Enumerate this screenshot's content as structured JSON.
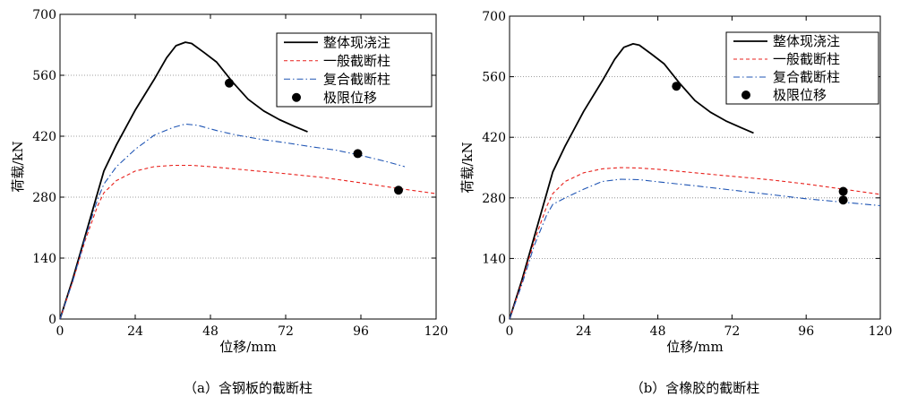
{
  "chart_data": [
    {
      "type": "line",
      "caption": "（a）含钢板的截断柱",
      "xlabel": "位移/mm",
      "ylabel": "荷载/kN",
      "xlim": [
        0,
        120
      ],
      "ylim": [
        0,
        700
      ],
      "xticks": [
        0,
        24,
        48,
        72,
        96,
        120
      ],
      "yticks": [
        0,
        140,
        280,
        420,
        560,
        700
      ],
      "grid": "horizontal dotted",
      "legend_position": "top-right",
      "legend": [
        "整体现浇注",
        "一般截断柱",
        "复合截断柱",
        "极限位移"
      ],
      "series": [
        {
          "name": "整体现浇注",
          "color": "#000000",
          "style": "solid",
          "points": [
            [
              0,
              0
            ],
            [
              4,
              90
            ],
            [
              8,
              190
            ],
            [
              12,
              290
            ],
            [
              14,
              340
            ],
            [
              18,
              400
            ],
            [
              24,
              480
            ],
            [
              30,
              550
            ],
            [
              34,
              600
            ],
            [
              37,
              628
            ],
            [
              40,
              636
            ],
            [
              42,
              633
            ],
            [
              46,
              612
            ],
            [
              50,
              590
            ],
            [
              55,
              545
            ],
            [
              60,
              505
            ],
            [
              65,
              478
            ],
            [
              70,
              458
            ],
            [
              75,
              442
            ],
            [
              79,
              430
            ]
          ]
        },
        {
          "name": "一般截断柱",
          "color": "#e8211c",
          "style": "dashed",
          "points": [
            [
              0,
              0
            ],
            [
              4,
              85
            ],
            [
              8,
              180
            ],
            [
              12,
              260
            ],
            [
              14,
              290
            ],
            [
              18,
              318
            ],
            [
              24,
              340
            ],
            [
              30,
              350
            ],
            [
              36,
              353
            ],
            [
              42,
              353
            ],
            [
              48,
              350
            ],
            [
              60,
              342
            ],
            [
              72,
              334
            ],
            [
              84,
              325
            ],
            [
              96,
              313
            ],
            [
              108,
              300
            ],
            [
              120,
              288
            ]
          ]
        },
        {
          "name": "复合截断柱",
          "color": "#1f55b4",
          "style": "dashdot",
          "points": [
            [
              0,
              0
            ],
            [
              4,
              85
            ],
            [
              8,
              185
            ],
            [
              12,
              275
            ],
            [
              14,
              310
            ],
            [
              18,
              350
            ],
            [
              24,
              390
            ],
            [
              30,
              422
            ],
            [
              36,
              440
            ],
            [
              40,
              448
            ],
            [
              44,
              445
            ],
            [
              50,
              433
            ],
            [
              56,
              423
            ],
            [
              64,
              413
            ],
            [
              72,
              405
            ],
            [
              80,
              396
            ],
            [
              88,
              388
            ],
            [
              96,
              376
            ],
            [
              104,
              362
            ],
            [
              110,
              350
            ]
          ]
        }
      ],
      "ultimate_points": [
        [
          54,
          542
        ],
        [
          95,
          380
        ],
        [
          108,
          296
        ]
      ]
    },
    {
      "type": "line",
      "caption": "（b）含橡胶的截断柱",
      "xlabel": "位移/mm",
      "ylabel": "荷载/kN",
      "xlim": [
        0,
        120
      ],
      "ylim": [
        0,
        700
      ],
      "xticks": [
        0,
        24,
        48,
        72,
        96,
        120
      ],
      "yticks": [
        0,
        140,
        280,
        420,
        560,
        700
      ],
      "grid": "horizontal dotted",
      "legend_position": "top-right",
      "legend": [
        "整体现浇注",
        "一般截断柱",
        "复合截断柱",
        "极限位移"
      ],
      "series": [
        {
          "name": "整体现浇注",
          "color": "#000000",
          "style": "solid",
          "points": [
            [
              0,
              0
            ],
            [
              4,
              90
            ],
            [
              8,
              190
            ],
            [
              12,
              290
            ],
            [
              14,
              340
            ],
            [
              18,
              400
            ],
            [
              24,
              480
            ],
            [
              30,
              550
            ],
            [
              34,
              600
            ],
            [
              37,
              628
            ],
            [
              40,
              636
            ],
            [
              42,
              633
            ],
            [
              46,
              612
            ],
            [
              50,
              590
            ],
            [
              55,
              545
            ],
            [
              60,
              505
            ],
            [
              65,
              478
            ],
            [
              70,
              458
            ],
            [
              75,
              442
            ],
            [
              79,
              430
            ]
          ]
        },
        {
          "name": "一般截断柱",
          "color": "#e8211c",
          "style": "dashed",
          "points": [
            [
              0,
              0
            ],
            [
              4,
              85
            ],
            [
              8,
              180
            ],
            [
              12,
              260
            ],
            [
              14,
              290
            ],
            [
              18,
              318
            ],
            [
              24,
              338
            ],
            [
              30,
              347
            ],
            [
              36,
              350
            ],
            [
              42,
              349
            ],
            [
              48,
              346
            ],
            [
              60,
              338
            ],
            [
              72,
              330
            ],
            [
              84,
              322
            ],
            [
              96,
              312
            ],
            [
              108,
              300
            ],
            [
              120,
              288
            ]
          ]
        },
        {
          "name": "复合截断柱",
          "color": "#1f55b4",
          "style": "dashdot",
          "points": [
            [
              0,
              0
            ],
            [
              4,
              80
            ],
            [
              8,
              170
            ],
            [
              12,
              240
            ],
            [
              14,
              265
            ],
            [
              18,
              280
            ],
            [
              24,
              300
            ],
            [
              30,
              318
            ],
            [
              36,
              323
            ],
            [
              42,
              322
            ],
            [
              48,
              317
            ],
            [
              60,
              308
            ],
            [
              72,
              298
            ],
            [
              84,
              288
            ],
            [
              96,
              278
            ],
            [
              108,
              270
            ],
            [
              120,
              262
            ]
          ]
        }
      ],
      "ultimate_points": [
        [
          54,
          538
        ],
        [
          108,
          295
        ],
        [
          108,
          275
        ]
      ]
    }
  ]
}
